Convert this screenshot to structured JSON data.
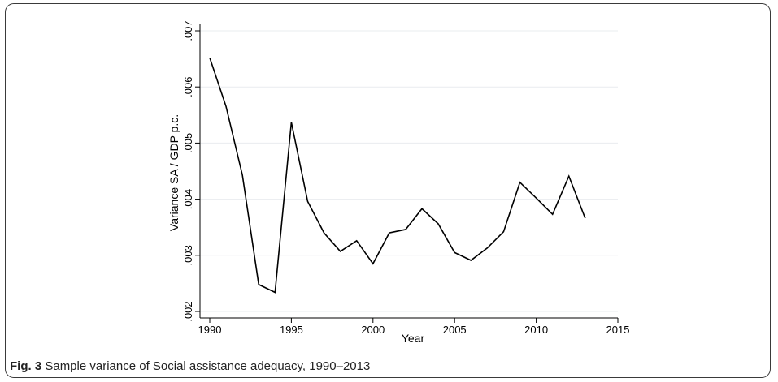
{
  "caption": {
    "label": "Fig. 3",
    "text": "Sample variance of Social assistance adequacy, 1990–2013"
  },
  "chart_data": {
    "type": "line",
    "title": "",
    "xlabel": "Year",
    "ylabel": "Variance SA / GDP p.c.",
    "xlim": [
      1990,
      2015
    ],
    "ylim": [
      0.002,
      0.007
    ],
    "xticks": [
      1990,
      1995,
      2000,
      2005,
      2010,
      2015
    ],
    "xtick_labels": [
      "1990",
      "1995",
      "2000",
      "2005",
      "2010",
      "2015"
    ],
    "yticks": [
      0.002,
      0.003,
      0.004,
      0.005,
      0.006,
      0.007
    ],
    "ytick_labels": [
      ".002",
      ".003",
      ".004",
      ".005",
      ".006",
      ".007"
    ],
    "grid": true,
    "legend": "none",
    "line_color": "#000000",
    "x": [
      1990,
      1991,
      1992,
      1993,
      1994,
      1995,
      1996,
      1997,
      1998,
      1999,
      2000,
      2001,
      2002,
      2003,
      2004,
      2005,
      2006,
      2007,
      2008,
      2009,
      2010,
      2011,
      2012,
      2013
    ],
    "y": [
      0.00652,
      0.00565,
      0.00443,
      0.00248,
      0.00234,
      0.00537,
      0.00396,
      0.0034,
      0.00307,
      0.00326,
      0.00285,
      0.0034,
      0.00346,
      0.00383,
      0.00356,
      0.00305,
      0.00291,
      0.00313,
      0.00342,
      0.0043,
      0.00402,
      0.00373,
      0.00441,
      0.00366
    ]
  }
}
